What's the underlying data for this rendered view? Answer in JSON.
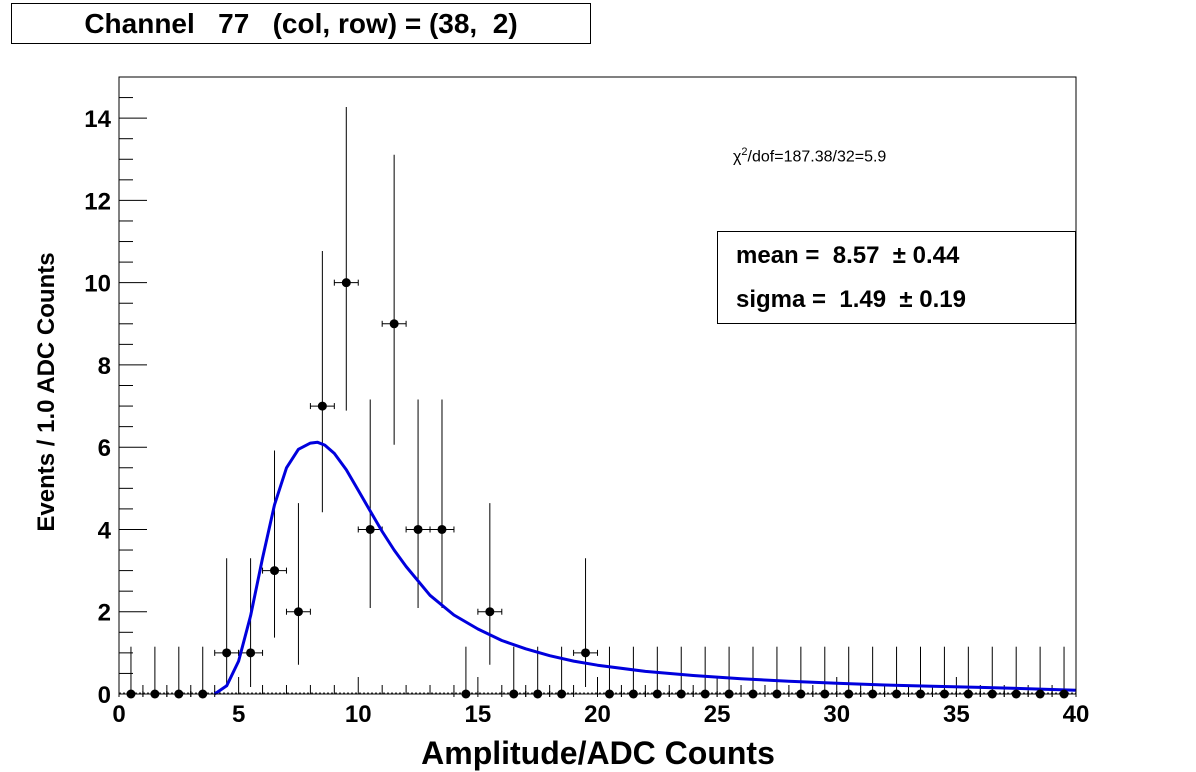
{
  "title": "Channel   77   (col, row) = (38,  2)",
  "fit_text": {
    "chi_prefix": "χ",
    "chi_sup": "2",
    "chi_rest": "/dof=187.38/32=5.9",
    "mean_line": "mean =  8.57  ± 0.44",
    "sigma_line": "sigma =  1.49  ± 0.19"
  },
  "colors": {
    "fit_curve": "#0000dd",
    "points": "#000000",
    "frame": "#000000"
  },
  "chart_data": {
    "type": "scatter",
    "title": "Channel   77   (col, row) = (38,  2)",
    "xlabel": "Amplitude/ADC Counts",
    "ylabel": "Events / 1.0 ADC Counts",
    "xlim": [
      0,
      40
    ],
    "ylim": [
      0,
      15
    ],
    "xticks": [
      0,
      5,
      10,
      15,
      20,
      25,
      30,
      35,
      40
    ],
    "yticks": [
      0,
      2,
      4,
      6,
      8,
      10,
      12,
      14
    ],
    "grid": false,
    "series": [
      {
        "type": "errorbar",
        "x": [
          0.5,
          1.5,
          2.5,
          3.5,
          4.5,
          5.5,
          6.5,
          7.5,
          8.5,
          9.5,
          10.5,
          11.5,
          12.5,
          13.5,
          14.5,
          15.5,
          16.5,
          17.5,
          18.5,
          19.5,
          20.5,
          21.5,
          22.5,
          23.5,
          24.5,
          25.5,
          26.5,
          27.5,
          28.5,
          29.5,
          30.5,
          31.5,
          32.5,
          33.5,
          34.5,
          35.5,
          36.5,
          37.5,
          38.5,
          39.5
        ],
        "y": [
          0,
          0,
          0,
          0,
          1,
          1,
          3,
          2,
          7,
          10,
          4,
          9,
          4,
          4,
          0,
          2,
          0,
          0,
          0,
          1,
          0,
          0,
          0,
          0,
          0,
          0,
          0,
          0,
          0,
          0,
          0,
          0,
          0,
          0,
          0,
          0,
          0,
          0,
          0,
          0
        ],
        "y_err_low": [
          0,
          0,
          0,
          0,
          0.83,
          0.83,
          1.63,
          1.29,
          2.58,
          3.11,
          1.91,
          2.94,
          1.91,
          1.91,
          0,
          1.29,
          0,
          0,
          0,
          0.83,
          0,
          0,
          0,
          0,
          0,
          0,
          0,
          0,
          0,
          0,
          0,
          0,
          0,
          0,
          0,
          0,
          0,
          0,
          0,
          0
        ],
        "y_err_high": [
          1.15,
          1.15,
          1.15,
          1.15,
          2.3,
          2.3,
          2.92,
          2.64,
          3.77,
          4.27,
          3.16,
          4.11,
          3.16,
          3.16,
          1.15,
          2.64,
          1.15,
          1.15,
          1.15,
          2.3,
          1.15,
          1.15,
          1.15,
          1.15,
          1.15,
          1.15,
          1.15,
          1.15,
          1.15,
          1.15,
          1.15,
          1.15,
          1.15,
          1.15,
          1.15,
          1.15,
          1.15,
          1.15,
          1.15,
          1.15
        ],
        "x_err": 0.5
      },
      {
        "type": "line",
        "x": [
          4.0,
          4.5,
          5.0,
          5.5,
          6.0,
          6.5,
          7.0,
          7.5,
          8.0,
          8.3,
          8.6,
          9.0,
          9.5,
          10.0,
          10.5,
          11.0,
          11.5,
          12.0,
          13.0,
          14.0,
          15.0,
          16.0,
          17.0,
          18.0,
          19.0,
          20.0,
          22.0,
          24.0,
          26.0,
          28.0,
          30.0,
          32.0,
          34.0,
          36.0,
          38.0,
          40.0
        ],
        "y": [
          0.0,
          0.2,
          0.8,
          1.9,
          3.3,
          4.6,
          5.5,
          5.95,
          6.1,
          6.12,
          6.05,
          5.85,
          5.45,
          4.95,
          4.45,
          3.95,
          3.5,
          3.1,
          2.4,
          1.92,
          1.58,
          1.3,
          1.1,
          0.93,
          0.8,
          0.7,
          0.55,
          0.45,
          0.37,
          0.31,
          0.26,
          0.22,
          0.19,
          0.16,
          0.13,
          0.09
        ]
      }
    ]
  }
}
